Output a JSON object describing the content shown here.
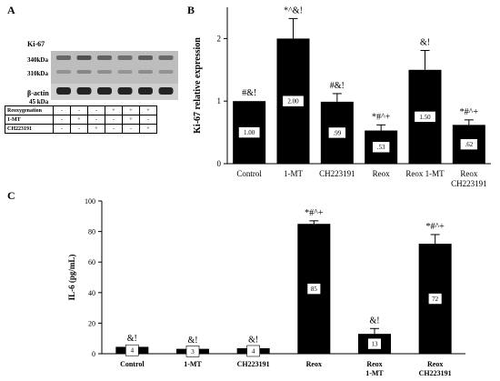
{
  "panel_a": {
    "letter": "A",
    "marker": "Ki-67",
    "band_labels": [
      "340kDa",
      "310kDa"
    ],
    "loading_control": "β-actin",
    "loading_control_size": "45 kDa",
    "conditions": [
      {
        "name": "Reoxygenation",
        "values": [
          "-",
          "-",
          "-",
          "+",
          "+",
          "+"
        ]
      },
      {
        "name": "1-MT",
        "values": [
          "-",
          "+",
          "-",
          "-",
          "+",
          "-"
        ]
      },
      {
        "name": "CH223191",
        "values": [
          "-",
          "-",
          "+",
          "-",
          "-",
          "+"
        ]
      }
    ]
  },
  "panel_b_letter": "B",
  "panel_c_letter": "C",
  "chart_data": [
    {
      "type": "bar",
      "panel": "B",
      "ylabel": "Ki-67 relative expression",
      "xlabel": "",
      "ylim": [
        0,
        2.5
      ],
      "yticks": [
        0,
        1,
        2
      ],
      "categories": [
        "Control",
        "1-MT",
        "CH223191",
        "Reox",
        "Reox 1-MT",
        "Reox\nCH223191"
      ],
      "values": [
        1.0,
        2.0,
        0.99,
        0.53,
        1.5,
        0.62
      ],
      "errors": [
        0.0,
        0.32,
        0.13,
        0.09,
        0.31,
        0.08
      ],
      "value_labels": [
        "1.00",
        "2.00",
        ".99",
        ".53",
        "1.50",
        ".62"
      ],
      "annotations": [
        "#&!",
        "*^&!",
        "#&!",
        "*#^+",
        "&!",
        "*#^+"
      ],
      "bar_color": "#000000"
    },
    {
      "type": "bar",
      "panel": "C",
      "ylabel": "IL-6 (pg/mL)",
      "xlabel": "",
      "ylim": [
        0,
        100
      ],
      "yticks": [
        0,
        20,
        40,
        60,
        80,
        100
      ],
      "categories": [
        "Control",
        "1-MT",
        "CH223191",
        "Reox",
        "Reox\n1-MT",
        "Reox\nCH223191"
      ],
      "values": [
        4.5,
        3.2,
        3.6,
        85,
        13,
        72
      ],
      "errors": [
        0.4,
        0.3,
        0.4,
        2.0,
        3.5,
        6.0
      ],
      "value_labels": [
        "4",
        "3",
        "4",
        "85",
        "13",
        "72"
      ],
      "annotations": [
        "&!",
        "&!",
        "&!",
        "*#^+",
        "&!",
        "*#^+"
      ],
      "bar_color": "#000000"
    }
  ]
}
